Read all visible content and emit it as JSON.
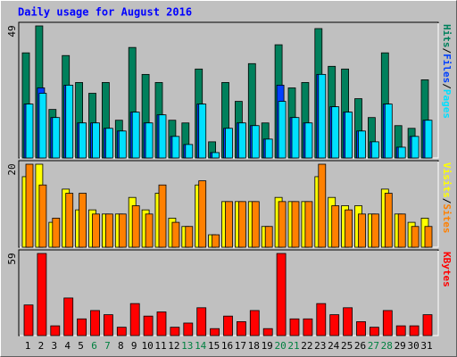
{
  "title": "Daily usage for August 2016",
  "categories": [
    "1",
    "2",
    "3",
    "4",
    "5",
    "6",
    "7",
    "8",
    "9",
    "10",
    "11",
    "12",
    "13",
    "14",
    "15",
    "16",
    "17",
    "18",
    "19",
    "20",
    "21",
    "22",
    "23",
    "24",
    "25",
    "26",
    "27",
    "28",
    "29",
    "30",
    "31"
  ],
  "category_colors": [
    "#000000",
    "#000000",
    "#000000",
    "#000000",
    "#000000",
    "#008040",
    "#008040",
    "#000000",
    "#000000",
    "#000000",
    "#000000",
    "#000000",
    "#008040",
    "#008040",
    "#000000",
    "#000000",
    "#000000",
    "#000000",
    "#000000",
    "#008040",
    "#008040",
    "#000000",
    "#000000",
    "#000000",
    "#000000",
    "#000000",
    "#008040",
    "#008040",
    "#000000",
    "#000000",
    "#000000"
  ],
  "legend_separator": "/",
  "chart_data": [
    {
      "type": "bar",
      "ylim": [
        0,
        49
      ],
      "yticks": [
        49
      ],
      "series": [
        {
          "name": "Hits",
          "color": "#00805c",
          "values": [
            39,
            49,
            18,
            38,
            28,
            24,
            28,
            14,
            41,
            31,
            28,
            14,
            13,
            33,
            6,
            28,
            21,
            35,
            13,
            42,
            26,
            28,
            48,
            34,
            33,
            22,
            15,
            39,
            12,
            11,
            29
          ]
        },
        {
          "name": "Files",
          "color": "#0040ff",
          "values": [
            20,
            26,
            15,
            27,
            13,
            13,
            11,
            10,
            17,
            13,
            16,
            8,
            5,
            20,
            2,
            11,
            13,
            12,
            7,
            27,
            15,
            13,
            31,
            19,
            17,
            10,
            6,
            20,
            4,
            8,
            14
          ]
        },
        {
          "name": "Pages",
          "color": "#00e0ff",
          "values": [
            20,
            24,
            15,
            27,
            13,
            13,
            11,
            10,
            17,
            13,
            16,
            8,
            5,
            20,
            2,
            11,
            13,
            12,
            7,
            21,
            15,
            13,
            31,
            19,
            17,
            10,
            6,
            20,
            4,
            8,
            14
          ]
        }
      ]
    },
    {
      "type": "bar",
      "ylim": [
        0,
        20
      ],
      "yticks": [
        20
      ],
      "series": [
        {
          "name": "Visits",
          "color": "#ffff00",
          "values": [
            17,
            20,
            6,
            14,
            9,
            9,
            8,
            8,
            12,
            9,
            13,
            7,
            5,
            15,
            3,
            11,
            11,
            11,
            5,
            12,
            11,
            11,
            17,
            12,
            10,
            10,
            8,
            14,
            8,
            6,
            7
          ]
        },
        {
          "name": "Sites",
          "color": "#ff8000",
          "values": [
            20,
            15,
            7,
            13,
            13,
            8,
            8,
            8,
            10,
            8,
            15,
            6,
            5,
            16,
            3,
            11,
            11,
            11,
            5,
            11,
            11,
            11,
            20,
            10,
            9,
            8,
            8,
            13,
            8,
            5,
            5
          ]
        }
      ]
    },
    {
      "type": "bar",
      "ylim": [
        0,
        59
      ],
      "yticks": [
        59
      ],
      "series": [
        {
          "name": "KBytes",
          "color": "#ff0000",
          "values": [
            22,
            59,
            7,
            27,
            12,
            18,
            15,
            6,
            23,
            14,
            17,
            6,
            9,
            20,
            5,
            14,
            10,
            18,
            5,
            59,
            12,
            12,
            23,
            15,
            20,
            10,
            6,
            18,
            7,
            7,
            15
          ]
        }
      ]
    }
  ]
}
